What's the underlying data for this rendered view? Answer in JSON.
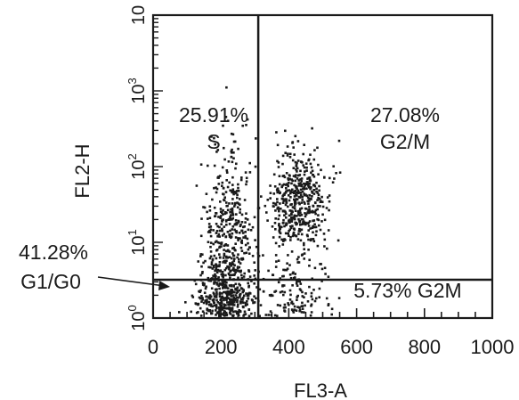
{
  "chart_data": {
    "type": "scatter",
    "xlabel": "FL3-A",
    "ylabel": "FL2-H",
    "xlim": [
      0,
      1000
    ],
    "x_ticks": [
      "0",
      "200",
      "400",
      "600",
      "800",
      "1000"
    ],
    "y_scale": "log",
    "ylim": [
      1,
      10000
    ],
    "y_ticks": [
      {
        "base": "10",
        "exp": "0"
      },
      {
        "base": "10",
        "exp": "1"
      },
      {
        "base": "10",
        "exp": "2"
      },
      {
        "base": "10",
        "exp": "3"
      },
      {
        "base": "10",
        "exp": ""
      }
    ],
    "gates": {
      "x": 310,
      "y": 3.2
    },
    "quadrants": [
      {
        "percent": "25.91%",
        "label": "S"
      },
      {
        "percent": "27.08%",
        "label": "G2/M"
      },
      {
        "percent": "5.73% G2M",
        "label": ""
      },
      {
        "percent": "41.28%",
        "label": "G1/G0"
      }
    ],
    "clusters": [
      {
        "name": "G1/G0",
        "x_center": 215,
        "x_spread": 45,
        "y_center": 1.35,
        "y_spread": 0.35,
        "count": 600
      },
      {
        "name": "S-phase",
        "x_center": 225,
        "x_spread": 35,
        "y_center": 12,
        "y_spread": 0.6,
        "count": 420
      },
      {
        "name": "G2/M",
        "x_center": 430,
        "x_spread": 40,
        "y_center": 35,
        "y_spread": 0.35,
        "count": 480
      },
      {
        "name": "G2M-low",
        "x_center": 420,
        "x_spread": 50,
        "y_center": 1.8,
        "y_spread": 0.3,
        "count": 160
      }
    ],
    "colors": {
      "ink": "#1a1a1a",
      "background": "#ffffff"
    }
  }
}
